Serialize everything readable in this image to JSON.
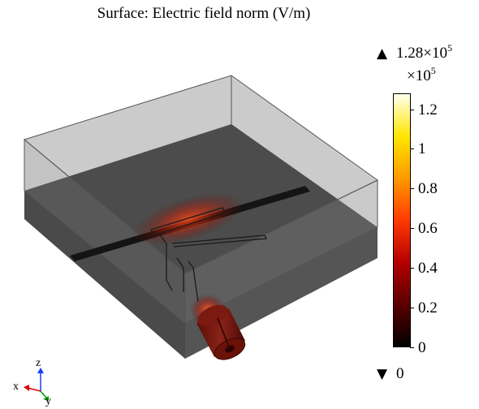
{
  "plot": {
    "title": "Surface: Electric field norm (V/m)",
    "max_prefix": "1.28×10",
    "max_exp": "5",
    "min_value": "0",
    "scale_prefix": "×10",
    "scale_exp": "5",
    "max_marker_icon": "triangle-up-icon",
    "min_marker_icon": "triangle-down-icon"
  },
  "colorbar": {
    "min": 0,
    "max": 1.28,
    "ticks": [
      {
        "value": 1.2,
        "label": "1.2"
      },
      {
        "value": 1.0,
        "label": "1"
      },
      {
        "value": 0.8,
        "label": "0.8"
      },
      {
        "value": 0.6,
        "label": "0.6"
      },
      {
        "value": 0.4,
        "label": "0.4"
      },
      {
        "value": 0.2,
        "label": "0.2"
      },
      {
        "value": 0.0,
        "label": "0"
      }
    ],
    "colormap": [
      "#000000",
      "#5a0000",
      "#b40000",
      "#ff3a00",
      "#ff9a00",
      "#ffe600",
      "#fffff0"
    ]
  },
  "axes_triad": {
    "z": "z",
    "x": "x",
    "y": "y",
    "colors": {
      "z": "#1a3cff",
      "x": "#e00000",
      "y": "#00a000"
    }
  }
}
